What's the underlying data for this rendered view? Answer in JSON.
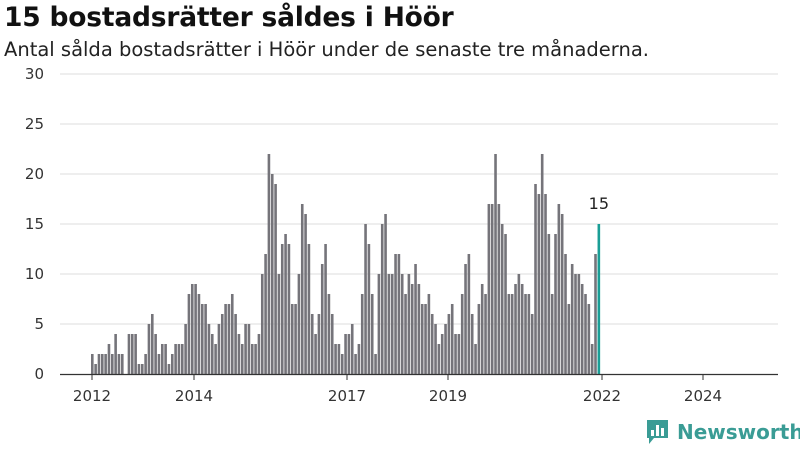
{
  "title": "15 bostadsrätter såldes i Höör",
  "subtitle": "Antal sålda bostadsrätter i Höör under de senaste tre månaderna.",
  "brand": {
    "name": "Newsworthy",
    "color": "#3a9c95"
  },
  "colors": {
    "bar": "#75747a",
    "highlight": "#1a9e96",
    "grid": "#dddddd"
  },
  "chart_data": {
    "type": "bar",
    "title": "15 bostadsrätter såldes i Höör",
    "subtitle": "Antal sålda bostadsrätter i Höör under de senaste tre månaderna.",
    "xlabel": "",
    "ylabel": "",
    "ylim": [
      0,
      30
    ],
    "yticks": [
      0,
      5,
      10,
      15,
      20,
      25,
      30
    ],
    "xticks": [
      "2012",
      "2014",
      "2017",
      "2019",
      "2022",
      "2024"
    ],
    "grid": true,
    "values": [
      2,
      1,
      2,
      2,
      2,
      3,
      2,
      4,
      2,
      2,
      0,
      4,
      4,
      4,
      1,
      1,
      2,
      5,
      6,
      4,
      2,
      3,
      3,
      1,
      2,
      3,
      3,
      3,
      5,
      8,
      9,
      9,
      8,
      7,
      7,
      5,
      4,
      3,
      5,
      6,
      7,
      7,
      8,
      6,
      4,
      3,
      5,
      5,
      3,
      3,
      4,
      10,
      12,
      22,
      20,
      19,
      10,
      13,
      14,
      13,
      7,
      7,
      10,
      17,
      16,
      13,
      6,
      4,
      6,
      11,
      13,
      8,
      6,
      3,
      3,
      2,
      4,
      4,
      5,
      2,
      3,
      8,
      15,
      13,
      8,
      2,
      10,
      15,
      16,
      10,
      10,
      12,
      12,
      10,
      8,
      10,
      9,
      11,
      9,
      7,
      7,
      8,
      6,
      5,
      3,
      4,
      5,
      6,
      7,
      4,
      4,
      8,
      11,
      12,
      6,
      3,
      7,
      9,
      8,
      17,
      17,
      22,
      17,
      15,
      14,
      8,
      8,
      9,
      10,
      9,
      8,
      8,
      6,
      19,
      18,
      22,
      18,
      14,
      8,
      14,
      17,
      16,
      12,
      7,
      11,
      10,
      10,
      9,
      8,
      7,
      3,
      12,
      15
    ],
    "highlight_index": 152,
    "highlight_label": "15"
  }
}
